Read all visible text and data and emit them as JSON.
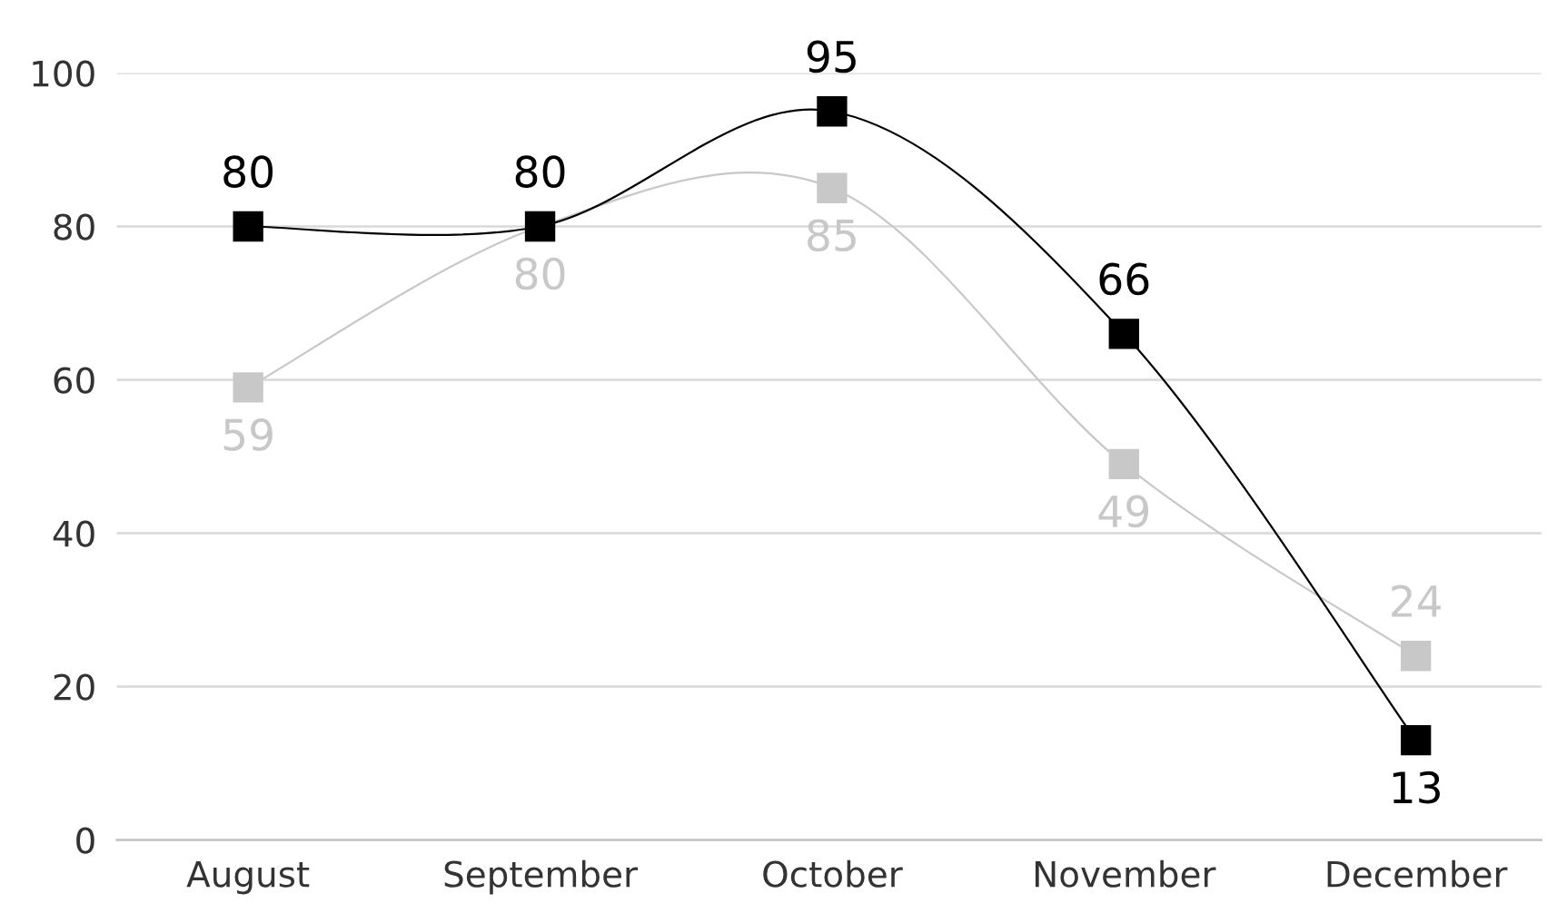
{
  "chart_data": {
    "type": "line",
    "categories": [
      "August",
      "September",
      "October",
      "November",
      "December"
    ],
    "series": [
      {
        "color": "#c8c8c8",
        "values": [
          59,
          80,
          85,
          49,
          24
        ]
      },
      {
        "color": "#000000",
        "values": [
          80,
          80,
          95,
          66,
          13
        ]
      }
    ],
    "ylim": [
      0,
      100
    ],
    "yticks": [
      0,
      20,
      40,
      60,
      80,
      100
    ],
    "grid": "y",
    "marker": "square",
    "data_labels": true
  }
}
